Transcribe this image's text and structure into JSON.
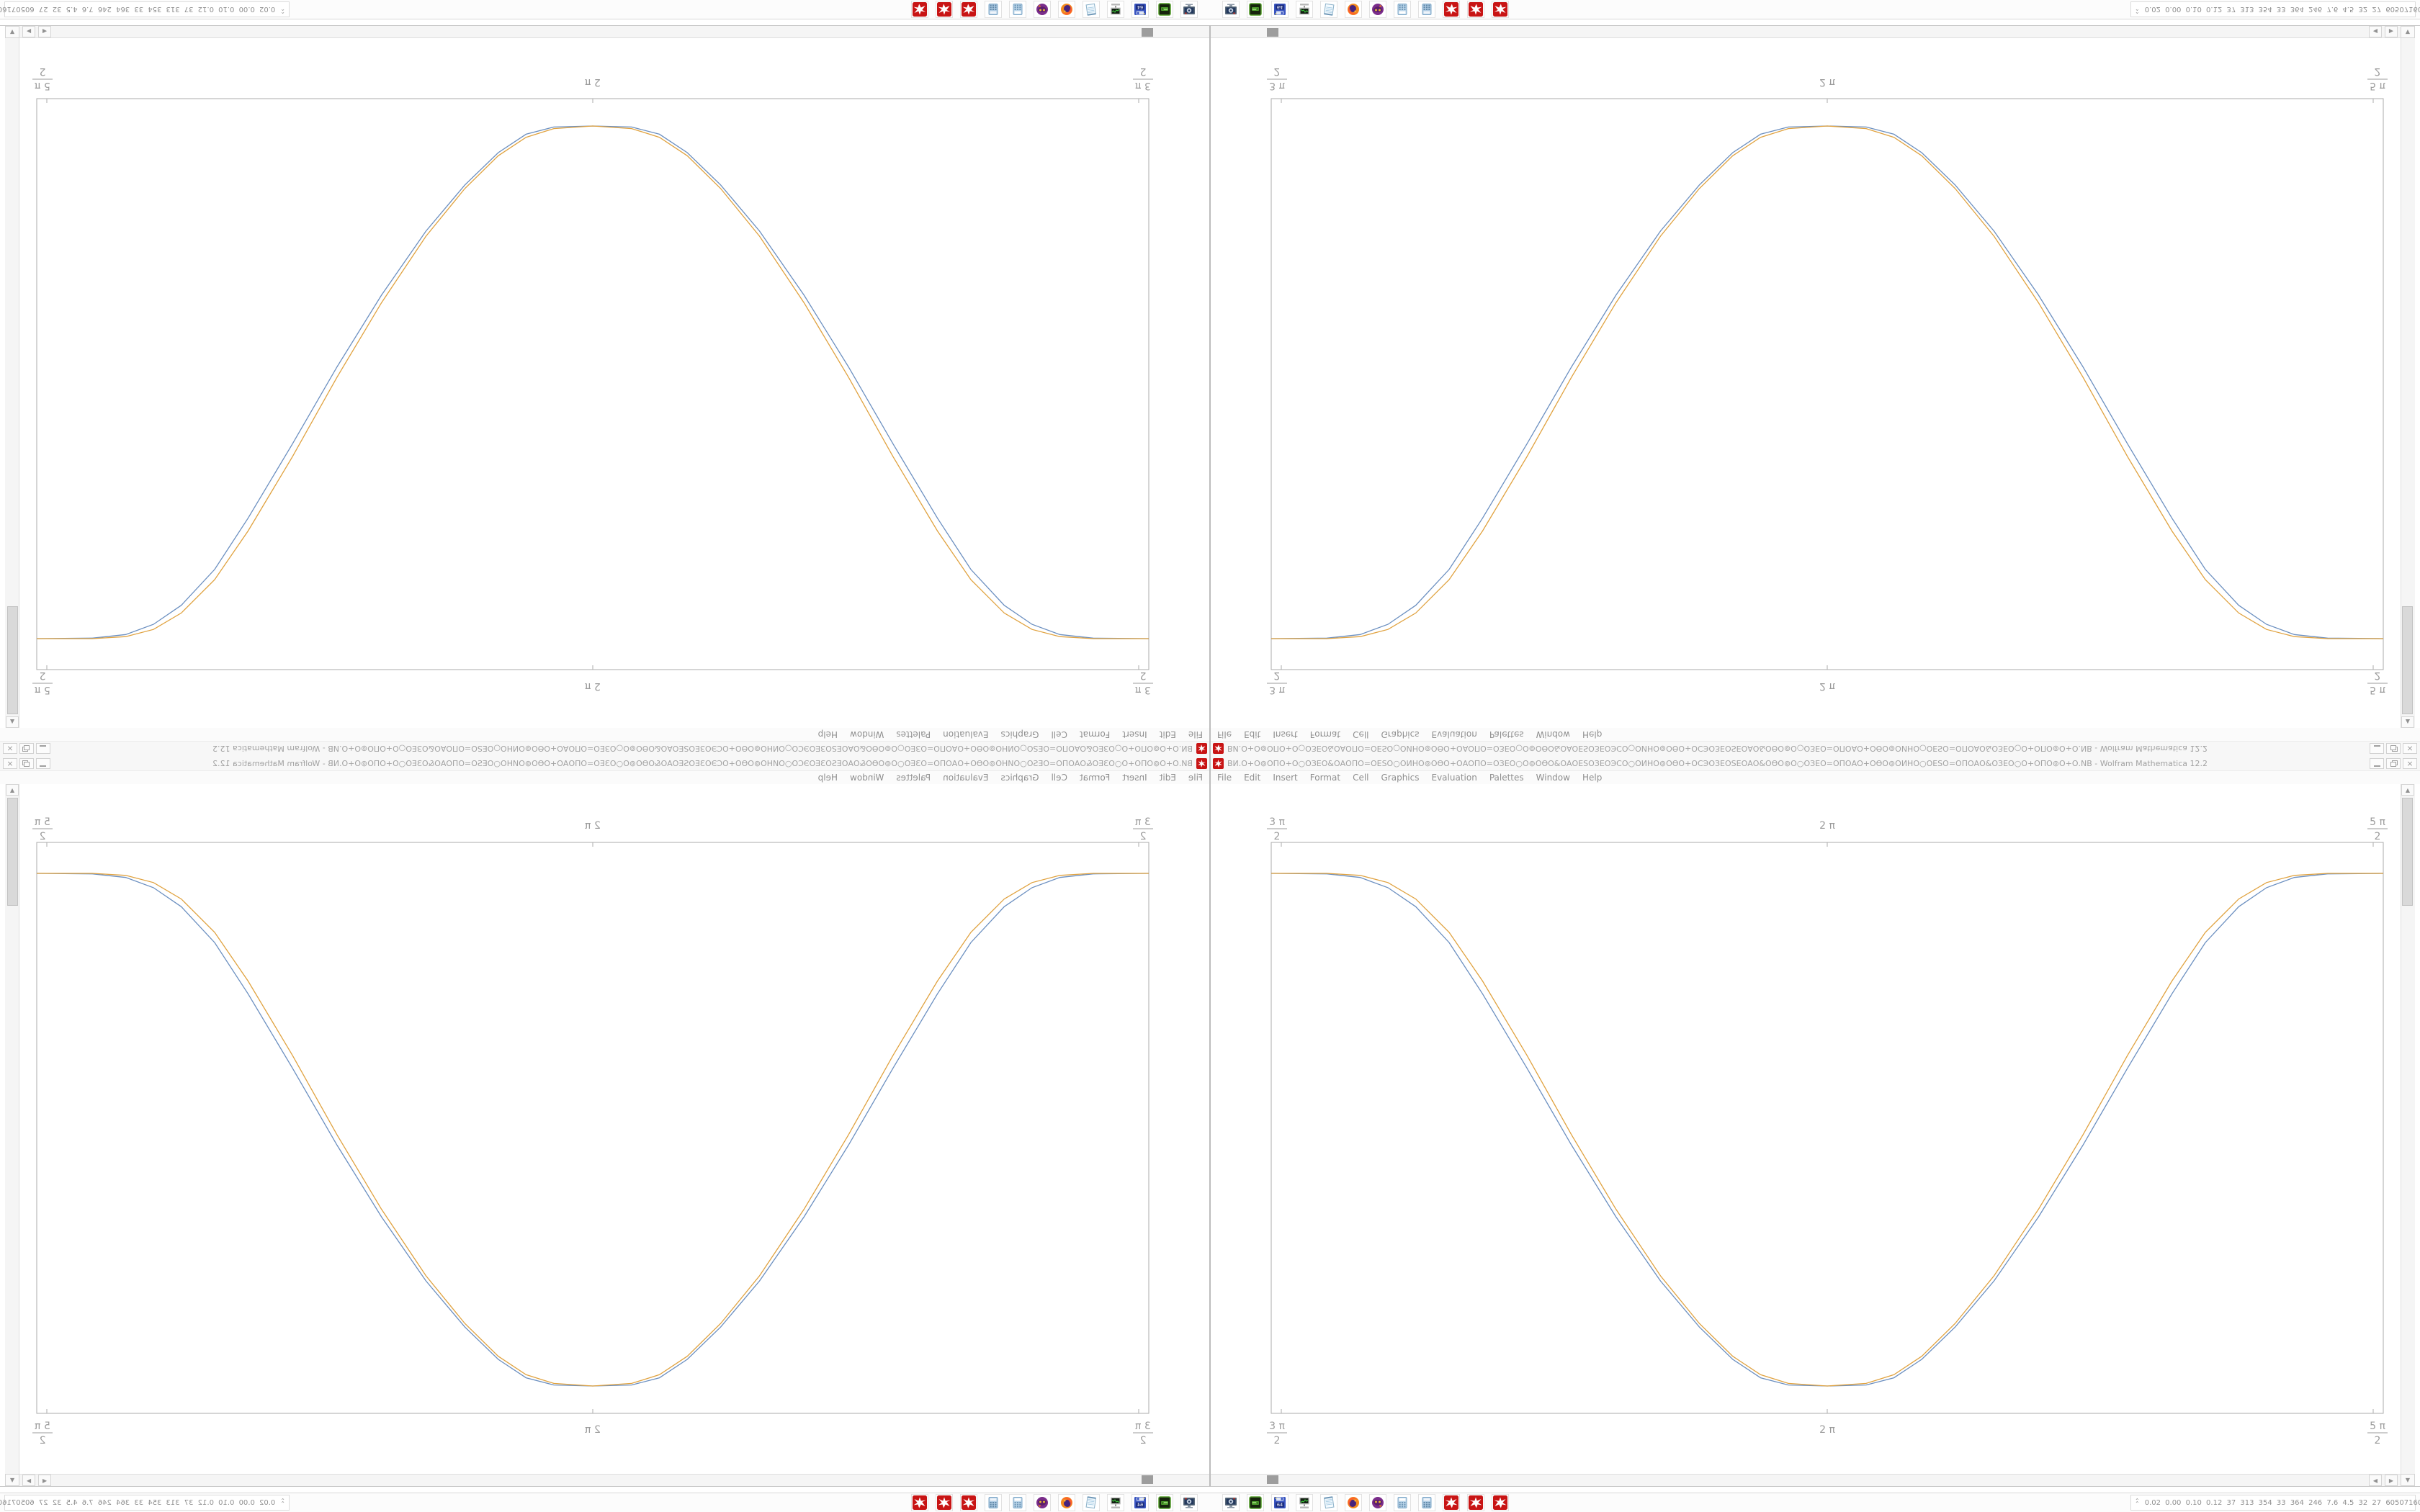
{
  "meta": {
    "app": "Wolfram Mathematica",
    "composition": "four mirrored quadrants; true content is bottom-right quadrant"
  },
  "window": {
    "title": "ВИ.О+О⊚ОПО+О○ОЗЕО&ОАОПО=ОЕЅО○ОИНО⊚ОѲО+ОАОПО=ОЗЕО○О⊚ОѲО&ОАОЕЅОЗЕОЭСО○ОИНО⊚ОѲО+ОСЭОЗЕОЅЕОАО&ОѲО⊚О○ОЗЕО=ОПОАО+ОѲО⊚ОИНО○ОЕЅО=ОПОАО&ОЗЕО○О+ОПО⊚О+О.NB - Wolfram Mathematica 12.2",
    "controls": {
      "minimize": "minimize",
      "restore": "restore",
      "close": "×"
    },
    "menu": {
      "items": [
        "File",
        "Edit",
        "Insert",
        "Format",
        "Cell",
        "Graphics",
        "Evaluation",
        "Palettes",
        "Window",
        "Help"
      ]
    }
  },
  "chart_data": {
    "type": "line",
    "title": "",
    "xlabel": "",
    "ylabel": "",
    "frame": true,
    "grid": false,
    "legend": "none",
    "x_domain": [
      "3π/2",
      "5π/2"
    ],
    "x_ticks": [
      {
        "num": "3 π",
        "den": "2"
      },
      {
        "label": "2 π"
      },
      {
        "num": "5 π",
        "den": "2"
      }
    ],
    "tick_sides": "top and bottom frame edges, no y-axis labels",
    "description": "Two nearly identical smoothed square-pulse curves: high plateau at x=3π/2, smooth descent, low plateau centered at x=2π, smooth rise back to high plateau at x=5π/2. Points are [x-fraction of frame width, y-fraction between high plateau (0) and low plateau (1)].",
    "series": [
      {
        "name": "series-blue",
        "color": "#6b8fc0",
        "points": [
          [
            0,
            0
          ],
          [
            0.05,
            0.001
          ],
          [
            0.08,
            0.008
          ],
          [
            0.105,
            0.028
          ],
          [
            0.13,
            0.065
          ],
          [
            0.16,
            0.135
          ],
          [
            0.19,
            0.235
          ],
          [
            0.23,
            0.38
          ],
          [
            0.27,
            0.53
          ],
          [
            0.31,
            0.67
          ],
          [
            0.35,
            0.795
          ],
          [
            0.385,
            0.885
          ],
          [
            0.415,
            0.948
          ],
          [
            0.44,
            0.984
          ],
          [
            0.465,
            0.998
          ],
          [
            0.5,
            1
          ],
          [
            0.535,
            0.998
          ],
          [
            0.56,
            0.984
          ],
          [
            0.585,
            0.948
          ],
          [
            0.615,
            0.885
          ],
          [
            0.65,
            0.795
          ],
          [
            0.69,
            0.67
          ],
          [
            0.73,
            0.53
          ],
          [
            0.77,
            0.38
          ],
          [
            0.81,
            0.235
          ],
          [
            0.84,
            0.135
          ],
          [
            0.87,
            0.065
          ],
          [
            0.895,
            0.028
          ],
          [
            0.92,
            0.008
          ],
          [
            0.95,
            0.001
          ],
          [
            1,
            0
          ]
        ]
      },
      {
        "name": "series-orange",
        "color": "#e0a23f",
        "points": [
          [
            0,
            0
          ],
          [
            0.05,
            0
          ],
          [
            0.08,
            0.004
          ],
          [
            0.105,
            0.018
          ],
          [
            0.13,
            0.05
          ],
          [
            0.16,
            0.115
          ],
          [
            0.19,
            0.21
          ],
          [
            0.23,
            0.355
          ],
          [
            0.27,
            0.51
          ],
          [
            0.31,
            0.655
          ],
          [
            0.35,
            0.785
          ],
          [
            0.385,
            0.878
          ],
          [
            0.415,
            0.942
          ],
          [
            0.44,
            0.978
          ],
          [
            0.465,
            0.995
          ],
          [
            0.5,
            1
          ],
          [
            0.535,
            0.995
          ],
          [
            0.56,
            0.978
          ],
          [
            0.585,
            0.942
          ],
          [
            0.615,
            0.878
          ],
          [
            0.65,
            0.785
          ],
          [
            0.69,
            0.655
          ],
          [
            0.73,
            0.51
          ],
          [
            0.77,
            0.355
          ],
          [
            0.81,
            0.21
          ],
          [
            0.84,
            0.115
          ],
          [
            0.87,
            0.05
          ],
          [
            0.895,
            0.018
          ],
          [
            0.92,
            0.004
          ],
          [
            0.95,
            0
          ],
          [
            1,
            0
          ]
        ]
      }
    ]
  },
  "taskbar": {
    "icons": [
      "monitor-settings",
      "disk-utility",
      "floppy-64",
      "system-monitor",
      "notepad",
      "firefox",
      "owl-app",
      "calculator",
      "calculator",
      "mathematica-spikey",
      "mathematica-spikey",
      "mathematica-spikey"
    ],
    "floppy_label": "64",
    "status": {
      "numbers": "0.02 0.00 0.10 0.12 37 313 354 33 364 246 7.6 4.5 32 27 60507160",
      "monitors": [
        "yellow-sparkline",
        "green-flatline",
        "purple-bars",
        "yellow-candle",
        "brown-block",
        "green-red-jagged"
      ]
    }
  },
  "ui": {
    "scroll_up": "▲",
    "scroll_down": "▼",
    "scroll_left": "◀",
    "scroll_right": "▶",
    "chevron_up": "⌃"
  }
}
